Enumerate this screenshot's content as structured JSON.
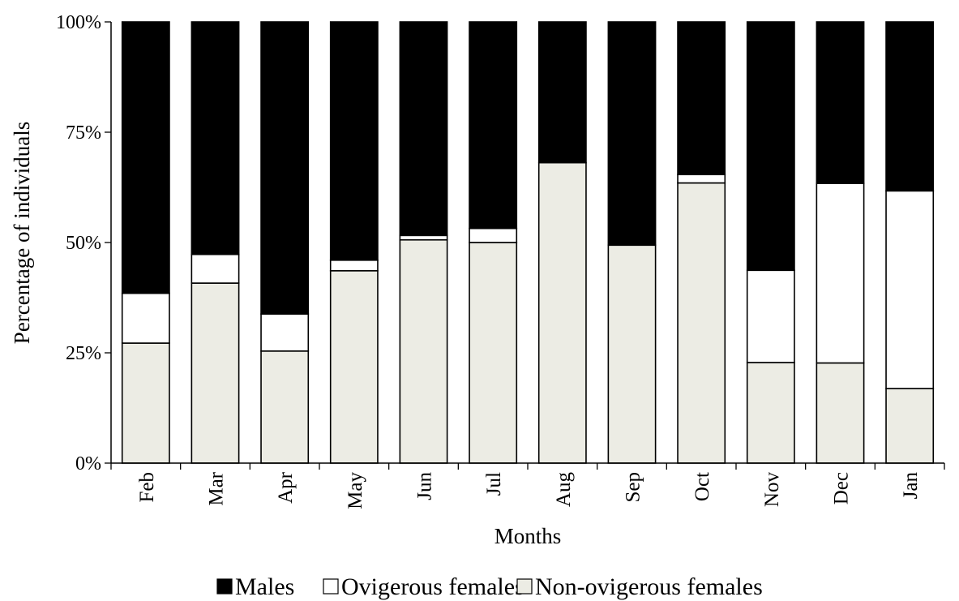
{
  "colors": {
    "males": "#000000",
    "ovigerous": "#ffffff",
    "non_ovigerous": "#ecece4",
    "stroke": "#000000"
  },
  "chart_data": {
    "type": "bar",
    "stacked": true,
    "percent_stacked": true,
    "title": "",
    "xlabel": "Months",
    "ylabel": "Percentage of individuals",
    "ylim": [
      0,
      100
    ],
    "yticks": [
      0,
      25,
      50,
      75,
      100
    ],
    "ytick_labels": [
      "0%",
      "25%",
      "50%",
      "75%",
      "100%"
    ],
    "categories": [
      "Feb",
      "Mar",
      "Apr",
      "May",
      "Jun",
      "Jul",
      "Aug",
      "Sep",
      "Oct",
      "Nov",
      "Dec",
      "Jan"
    ],
    "series": [
      {
        "name": "Non-ovigerous females",
        "color": "#ecece4",
        "values": [
          27.2,
          40.8,
          25.4,
          43.6,
          50.6,
          50.0,
          68.1,
          49.4,
          63.5,
          22.8,
          22.7,
          16.9
        ]
      },
      {
        "name": "Ovigerous females",
        "color": "#ffffff",
        "values": [
          11.3,
          6.5,
          8.4,
          2.4,
          1.0,
          3.2,
          0.0,
          0.0,
          1.9,
          20.9,
          40.7,
          44.8
        ]
      },
      {
        "name": "Males",
        "color": "#000000",
        "values": [
          61.5,
          52.7,
          66.2,
          54.0,
          48.4,
          46.8,
          31.9,
          50.6,
          34.6,
          56.3,
          36.6,
          38.3
        ]
      }
    ],
    "legend": {
      "placement": "bottom",
      "entries": [
        "Males",
        "Ovigerous females",
        "Non-ovigerous females"
      ]
    },
    "grid": false
  }
}
